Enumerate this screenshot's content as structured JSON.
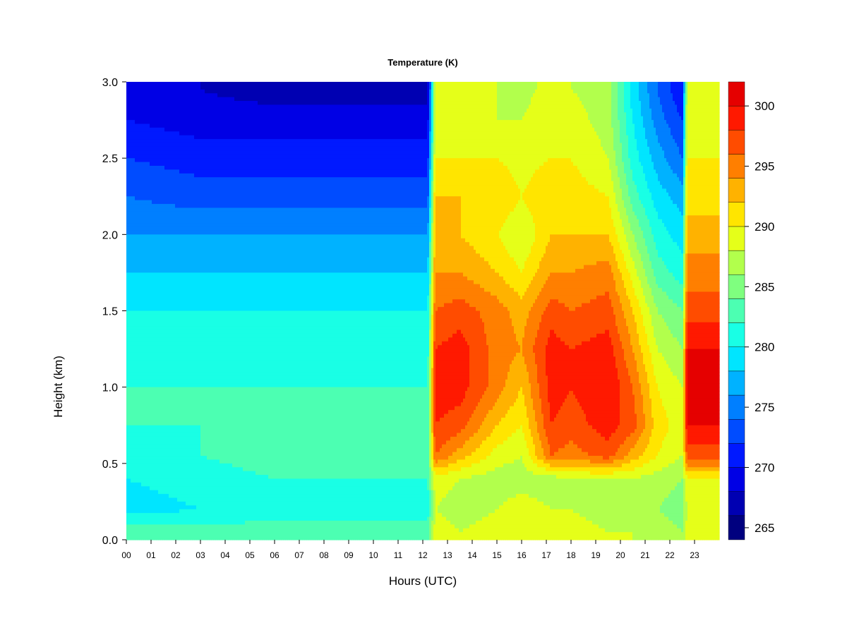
{
  "chart_data": {
    "type": "heatmap",
    "title": "Temperature (K)",
    "xlabel": "Hours (UTC)",
    "ylabel": "Height (km)",
    "xlim": [
      0,
      24
    ],
    "ylim": [
      0.0,
      3.0
    ],
    "x_tick_labels": [
      "00",
      "01",
      "02",
      "03",
      "04",
      "05",
      "06",
      "07",
      "08",
      "09",
      "10",
      "11",
      "12",
      "13",
      "14",
      "15",
      "16",
      "17",
      "18",
      "19",
      "20",
      "21",
      "22",
      "23"
    ],
    "y_tick_values": [
      0.0,
      0.5,
      1.0,
      1.5,
      2.0,
      2.5,
      3.0
    ],
    "y_tick_labels": [
      "0.0",
      "0.5",
      "1.0",
      "1.5",
      "2.0",
      "2.5",
      "3.0"
    ],
    "heights_km": [
      0.05,
      0.2,
      0.4,
      0.55,
      0.75,
      1.0,
      1.25,
      1.5,
      1.75,
      2.0,
      2.25,
      2.5,
      2.75,
      2.95
    ],
    "profiles": [
      {
        "hour": 0.0,
        "temps_k": [
          283,
          279,
          280,
          281,
          282,
          282,
          281,
          280,
          278,
          276,
          274,
          272,
          270,
          268
        ]
      },
      {
        "hour": 3.0,
        "temps_k": [
          283,
          280,
          281,
          282,
          282,
          282,
          281,
          280,
          278,
          276,
          273,
          271,
          269,
          268
        ]
      },
      {
        "hour": 6.0,
        "temps_k": [
          283,
          281,
          282,
          283,
          283,
          282,
          281,
          280,
          278,
          276,
          273,
          271,
          269,
          267
        ]
      },
      {
        "hour": 9.0,
        "temps_k": [
          283,
          281,
          282,
          283,
          283,
          282,
          281,
          280,
          278,
          276,
          273,
          271,
          269,
          267
        ]
      },
      {
        "hour": 12.2,
        "temps_k": [
          283,
          281,
          282,
          283,
          283,
          282,
          281,
          280,
          278,
          276,
          273,
          271,
          269,
          267
        ]
      },
      {
        "hour": 12.5,
        "temps_k": [
          289,
          288,
          289,
          296,
          298,
          299,
          298,
          296,
          294,
          293,
          292,
          290,
          288,
          288
        ]
      },
      {
        "hour": 13.5,
        "temps_k": [
          288,
          287,
          288,
          293,
          297,
          299,
          299,
          297,
          294,
          292,
          292,
          290,
          289,
          288
        ]
      },
      {
        "hour": 15.0,
        "temps_k": [
          289,
          288,
          287,
          289,
          292,
          295,
          295,
          295,
          292,
          290,
          292,
          290,
          288,
          288
        ]
      },
      {
        "hour": 16.0,
        "temps_k": [
          290,
          289,
          287,
          288,
          290,
          292,
          294,
          293,
          290,
          288,
          290,
          289,
          288,
          287
        ]
      },
      {
        "hour": 17.2,
        "temps_k": [
          289,
          288,
          287,
          296,
          298,
          299,
          299,
          297,
          294,
          292,
          292,
          290,
          290,
          289
        ]
      },
      {
        "hour": 18.0,
        "temps_k": [
          289,
          288,
          288,
          295,
          297,
          298,
          298,
          296,
          294,
          292,
          291,
          290,
          289,
          288
        ]
      },
      {
        "hour": 19.5,
        "temps_k": [
          288,
          287,
          288,
          297,
          299,
          300,
          299,
          297,
          295,
          292,
          290,
          288,
          287,
          287
        ]
      },
      {
        "hour": 20.5,
        "temps_k": [
          288,
          287,
          288,
          293,
          297,
          296,
          294,
          292,
          289,
          286,
          283,
          281,
          280,
          279
        ]
      },
      {
        "hour": 21.5,
        "temps_k": [
          287,
          286,
          287,
          290,
          291,
          290,
          288,
          286,
          283,
          281,
          279,
          277,
          275,
          274
        ]
      },
      {
        "hour": 22.5,
        "temps_k": [
          286,
          285,
          286,
          288,
          289,
          288,
          286,
          284,
          281,
          279,
          277,
          274,
          272,
          270
        ]
      },
      {
        "hour": 22.7,
        "temps_k": [
          289,
          288,
          290,
          297,
          300,
          301,
          300,
          297,
          295,
          293,
          291,
          290,
          289,
          288
        ]
      },
      {
        "hour": 23.9,
        "temps_k": [
          289,
          288,
          290,
          297,
          300,
          301,
          300,
          297,
          295,
          293,
          291,
          290,
          289,
          288
        ]
      }
    ],
    "colorbar": {
      "min": 264,
      "max": 302,
      "step": 2,
      "tick_values": [
        265,
        270,
        275,
        280,
        285,
        290,
        295,
        300
      ],
      "tick_labels": [
        "265",
        "270",
        "275",
        "280",
        "285",
        "290",
        "295",
        "300"
      ],
      "colors": [
        "#00007f",
        "#0000b2",
        "#0000e5",
        "#0019ff",
        "#004cff",
        "#007fff",
        "#00b2ff",
        "#00e5ff",
        "#19ffe5",
        "#4cffb2",
        "#7fff7f",
        "#b2ff4c",
        "#e5ff19",
        "#ffe500",
        "#ffb200",
        "#ff7f00",
        "#ff4c00",
        "#ff1900",
        "#e50000",
        "#b20000",
        "#7f0000"
      ]
    }
  }
}
